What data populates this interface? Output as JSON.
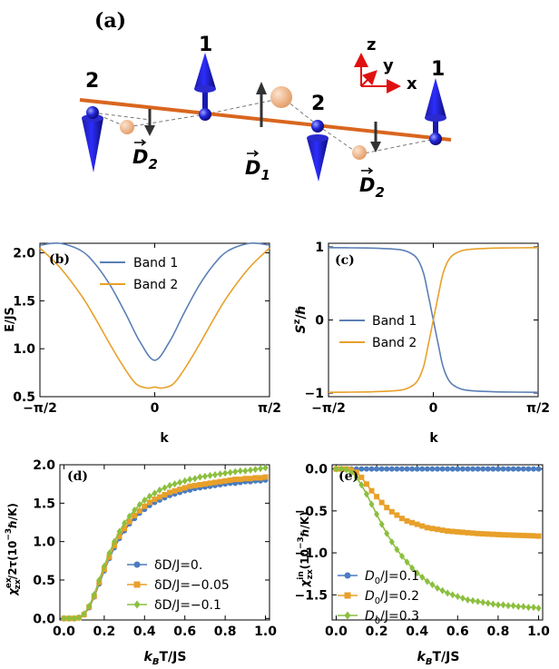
{
  "diagram": {
    "label": "(a)",
    "axes": {
      "z": "z",
      "y": "y",
      "x": "x"
    },
    "site_labels": [
      "2",
      "1",
      "2",
      "1"
    ],
    "vector_labels": [
      {
        "letter": "D",
        "sub": "2"
      },
      {
        "letter": "D",
        "sub": "1"
      },
      {
        "letter": "D",
        "sub": "2"
      }
    ],
    "colors": {
      "chain": "#d9661f",
      "spin": "#1414c8",
      "ion": "#e9a070",
      "dvec": "#3a3a3a"
    }
  },
  "chart_data": [
    {
      "panel": "(b)",
      "type": "line",
      "xlabel": "k",
      "ylabel": "E/JS",
      "xlim": [
        -1.5708,
        1.5708
      ],
      "ylim": [
        0.5,
        2.1
      ],
      "xticks": [
        {
          "value": -1.5708,
          "label": "−π/2"
        },
        {
          "value": 0,
          "label": "0"
        },
        {
          "value": 1.5708,
          "label": "π/2"
        }
      ],
      "yticks": [
        "0.5",
        "1.0",
        "1.5",
        "2.0"
      ],
      "legend_position": "top-center",
      "series": [
        {
          "name": "Band 1",
          "color": "#5b7fb5",
          "x": [
            -1.5708,
            -1.3,
            -1.0,
            -0.8,
            -0.6,
            -0.4,
            -0.2,
            0,
            0.2,
            0.4,
            0.6,
            0.8,
            1.0,
            1.3,
            1.5708
          ],
          "y": [
            2.08,
            2.1,
            2.02,
            1.87,
            1.65,
            1.37,
            1.07,
            0.88,
            1.07,
            1.37,
            1.65,
            1.87,
            2.02,
            2.1,
            2.08
          ]
        },
        {
          "name": "Band 2",
          "color": "#e8a02a",
          "x": [
            -1.5708,
            -1.3,
            -1.0,
            -0.8,
            -0.6,
            -0.4,
            -0.25,
            -0.1,
            0,
            0.1,
            0.25,
            0.4,
            0.6,
            0.8,
            1.0,
            1.3,
            1.5708
          ],
          "y": [
            2.05,
            1.85,
            1.55,
            1.3,
            1.03,
            0.78,
            0.63,
            0.59,
            0.6,
            0.59,
            0.63,
            0.78,
            1.03,
            1.3,
            1.55,
            1.85,
            2.05
          ]
        }
      ]
    },
    {
      "panel": "(c)",
      "type": "line",
      "xlabel": "k",
      "ylabel": "S",
      "ylabel_sup": "z",
      "ylabel_tail": "/ℏ",
      "xlim": [
        -1.5708,
        1.5708
      ],
      "ylim": [
        -1.05,
        1.05
      ],
      "xticks": [
        {
          "value": -1.5708,
          "label": "−π/2"
        },
        {
          "value": 0,
          "label": "0"
        },
        {
          "value": 1.5708,
          "label": "π/2"
        }
      ],
      "yticks": [
        "−1",
        "0",
        "1"
      ],
      "legend_position": "center-left",
      "series": [
        {
          "name": "Band 1",
          "color": "#5b7fb5",
          "x": [
            -1.5708,
            -1.0,
            -0.6,
            -0.4,
            -0.25,
            -0.15,
            -0.08,
            0,
            0.08,
            0.15,
            0.25,
            0.4,
            0.6,
            1.0,
            1.5708
          ],
          "y": [
            0.99,
            0.985,
            0.97,
            0.94,
            0.85,
            0.65,
            0.36,
            0,
            -0.36,
            -0.65,
            -0.85,
            -0.94,
            -0.97,
            -0.985,
            -0.99
          ]
        },
        {
          "name": "Band 2",
          "color": "#e8a02a",
          "x": [
            -1.5708,
            -1.0,
            -0.6,
            -0.4,
            -0.25,
            -0.15,
            -0.08,
            0,
            0.08,
            0.15,
            0.25,
            0.4,
            0.6,
            1.0,
            1.5708
          ],
          "y": [
            -0.99,
            -0.985,
            -0.97,
            -0.94,
            -0.85,
            -0.65,
            -0.36,
            0,
            0.36,
            0.65,
            0.85,
            0.94,
            0.97,
            0.985,
            0.99
          ]
        }
      ]
    },
    {
      "panel": "(d)",
      "type": "line",
      "xlabel_parts": [
        "k",
        "B",
        "T/JS"
      ],
      "ylabel_parts": [
        "χ",
        "ex",
        "zx",
        "/2τ(10",
        "−3",
        "ℏ/K)"
      ],
      "xlim": [
        -0.02,
        1.02
      ],
      "ylim": [
        -0.02,
        2.0
      ],
      "xticks": [
        "0.0",
        "0.2",
        "0.4",
        "0.6",
        "0.8",
        "1.0"
      ],
      "yticks": [
        "0.0",
        "0.5",
        "1.0",
        "1.5",
        "2.0"
      ],
      "legend_position": "bottom-right",
      "series": [
        {
          "name": "δD/J=0.",
          "color": "#4a7cc0",
          "marker": "circle",
          "x": [
            0,
            0.025,
            0.05,
            0.075,
            0.1,
            0.125,
            0.15,
            0.175,
            0.2,
            0.225,
            0.25,
            0.275,
            0.3,
            0.325,
            0.35,
            0.375,
            0.4,
            0.425,
            0.45,
            0.475,
            0.5,
            0.525,
            0.55,
            0.575,
            0.6,
            0.625,
            0.65,
            0.675,
            0.7,
            0.725,
            0.75,
            0.775,
            0.8,
            0.825,
            0.85,
            0.875,
            0.9,
            0.925,
            0.95,
            0.975,
            1.0
          ],
          "y": [
            0,
            0,
            0,
            0.01,
            0.05,
            0.14,
            0.28,
            0.45,
            0.62,
            0.78,
            0.92,
            1.04,
            1.14,
            1.23,
            1.3,
            1.37,
            1.42,
            1.47,
            1.51,
            1.54,
            1.57,
            1.6,
            1.62,
            1.64,
            1.66,
            1.67,
            1.69,
            1.7,
            1.71,
            1.72,
            1.73,
            1.74,
            1.75,
            1.76,
            1.76,
            1.77,
            1.78,
            1.78,
            1.79,
            1.79,
            1.8
          ]
        },
        {
          "name": "δD/J=−0.05",
          "color": "#e8a02a",
          "marker": "square",
          "x": [
            0,
            0.025,
            0.05,
            0.075,
            0.1,
            0.125,
            0.15,
            0.175,
            0.2,
            0.225,
            0.25,
            0.275,
            0.3,
            0.325,
            0.35,
            0.375,
            0.4,
            0.425,
            0.45,
            0.475,
            0.5,
            0.525,
            0.55,
            0.575,
            0.6,
            0.625,
            0.65,
            0.675,
            0.7,
            0.725,
            0.75,
            0.775,
            0.8,
            0.825,
            0.85,
            0.875,
            0.9,
            0.925,
            0.95,
            0.975,
            1.0
          ],
          "y": [
            0,
            0,
            0,
            0.01,
            0.05,
            0.15,
            0.29,
            0.47,
            0.64,
            0.8,
            0.95,
            1.07,
            1.17,
            1.26,
            1.34,
            1.4,
            1.46,
            1.51,
            1.55,
            1.58,
            1.61,
            1.64,
            1.66,
            1.68,
            1.7,
            1.72,
            1.73,
            1.74,
            1.75,
            1.76,
            1.77,
            1.78,
            1.79,
            1.8,
            1.81,
            1.81,
            1.82,
            1.82,
            1.83,
            1.83,
            1.84
          ]
        },
        {
          "name": "δD/J=−0.1",
          "color": "#8cbf3f",
          "marker": "diamond",
          "x": [
            0,
            0.025,
            0.05,
            0.075,
            0.1,
            0.125,
            0.15,
            0.175,
            0.2,
            0.225,
            0.25,
            0.275,
            0.3,
            0.325,
            0.35,
            0.375,
            0.4,
            0.425,
            0.45,
            0.475,
            0.5,
            0.525,
            0.55,
            0.575,
            0.6,
            0.625,
            0.65,
            0.675,
            0.7,
            0.725,
            0.75,
            0.775,
            0.8,
            0.825,
            0.85,
            0.875,
            0.9,
            0.925,
            0.95,
            0.975,
            1.0
          ],
          "y": [
            0,
            0,
            0,
            0.01,
            0.06,
            0.16,
            0.31,
            0.5,
            0.68,
            0.85,
            1.0,
            1.13,
            1.24,
            1.33,
            1.41,
            1.48,
            1.54,
            1.59,
            1.63,
            1.67,
            1.7,
            1.73,
            1.75,
            1.77,
            1.79,
            1.81,
            1.82,
            1.84,
            1.85,
            1.86,
            1.87,
            1.88,
            1.89,
            1.9,
            1.91,
            1.92,
            1.92,
            1.93,
            1.94,
            1.95,
            1.96
          ]
        }
      ]
    },
    {
      "panel": "(e)",
      "type": "line",
      "xlabel_parts": [
        "k",
        "B",
        "T/JS"
      ],
      "ylabel_parts": [
        "χ",
        "in",
        "zx",
        "(10",
        "−3",
        "ℏ/K)"
      ],
      "xlim": [
        -0.02,
        1.02
      ],
      "ylim": [
        -1.8,
        0.05
      ],
      "xticks": [
        "0.0",
        "0.2",
        "0.4",
        "0.6",
        "0.8",
        "1.0"
      ],
      "yticks": [
        "0.0",
        "−0.5",
        "−1.0",
        "−1.5"
      ],
      "legend_position": "bottom-left",
      "series": [
        {
          "name_parts": [
            "D",
            "0",
            "/J=0.1"
          ],
          "color": "#4a7cc0",
          "marker": "circle",
          "x": [
            0,
            0.025,
            0.05,
            0.075,
            0.1,
            0.125,
            0.15,
            0.175,
            0.2,
            0.225,
            0.25,
            0.275,
            0.3,
            0.325,
            0.35,
            0.375,
            0.4,
            0.425,
            0.45,
            0.475,
            0.5,
            0.525,
            0.55,
            0.575,
            0.6,
            0.625,
            0.65,
            0.675,
            0.7,
            0.725,
            0.75,
            0.775,
            0.8,
            0.825,
            0.85,
            0.875,
            0.9,
            0.925,
            0.95,
            0.975,
            1.0
          ],
          "y": [
            0,
            0,
            0,
            0,
            0,
            0,
            0,
            0,
            0,
            0,
            0,
            0,
            0,
            0,
            0,
            0,
            0,
            0,
            0,
            0,
            0,
            0,
            0,
            0,
            0,
            0,
            0,
            0,
            0,
            0,
            0,
            0,
            0,
            0,
            0,
            0,
            0,
            0,
            0,
            0,
            0
          ]
        },
        {
          "name_parts": [
            "D",
            "0",
            "/J=0.2"
          ],
          "color": "#e8a02a",
          "marker": "square",
          "x": [
            0,
            0.025,
            0.05,
            0.075,
            0.1,
            0.125,
            0.15,
            0.175,
            0.2,
            0.225,
            0.25,
            0.275,
            0.3,
            0.325,
            0.35,
            0.375,
            0.4,
            0.425,
            0.45,
            0.475,
            0.5,
            0.525,
            0.55,
            0.575,
            0.6,
            0.625,
            0.65,
            0.675,
            0.7,
            0.725,
            0.75,
            0.775,
            0.8,
            0.825,
            0.85,
            0.875,
            0.9,
            0.925,
            0.95,
            0.975,
            1.0
          ],
          "y": [
            0,
            0,
            0,
            -0.01,
            -0.04,
            -0.1,
            -0.18,
            -0.26,
            -0.33,
            -0.4,
            -0.46,
            -0.51,
            -0.55,
            -0.59,
            -0.62,
            -0.64,
            -0.66,
            -0.68,
            -0.7,
            -0.71,
            -0.72,
            -0.73,
            -0.74,
            -0.745,
            -0.75,
            -0.755,
            -0.76,
            -0.765,
            -0.77,
            -0.773,
            -0.776,
            -0.779,
            -0.782,
            -0.785,
            -0.787,
            -0.789,
            -0.791,
            -0.793,
            -0.795,
            -0.797,
            -0.8
          ]
        },
        {
          "name_parts": [
            "D",
            "0",
            "/J=0.3"
          ],
          "color": "#8cbf3f",
          "marker": "diamond",
          "x": [
            0,
            0.025,
            0.05,
            0.075,
            0.1,
            0.125,
            0.15,
            0.175,
            0.2,
            0.225,
            0.25,
            0.275,
            0.3,
            0.325,
            0.35,
            0.375,
            0.4,
            0.425,
            0.45,
            0.475,
            0.5,
            0.525,
            0.55,
            0.575,
            0.6,
            0.625,
            0.65,
            0.675,
            0.7,
            0.725,
            0.75,
            0.775,
            0.8,
            0.825,
            0.85,
            0.875,
            0.9,
            0.925,
            0.95,
            0.975,
            1.0
          ],
          "y": [
            0,
            0,
            -0.01,
            -0.04,
            -0.1,
            -0.19,
            -0.3,
            -0.42,
            -0.54,
            -0.66,
            -0.77,
            -0.87,
            -0.96,
            -1.04,
            -1.11,
            -1.18,
            -1.24,
            -1.29,
            -1.34,
            -1.38,
            -1.42,
            -1.45,
            -1.48,
            -1.5,
            -1.52,
            -1.54,
            -1.56,
            -1.57,
            -1.58,
            -1.59,
            -1.6,
            -1.61,
            -1.62,
            -1.62,
            -1.63,
            -1.63,
            -1.64,
            -1.64,
            -1.65,
            -1.65,
            -1.66
          ]
        }
      ]
    }
  ]
}
